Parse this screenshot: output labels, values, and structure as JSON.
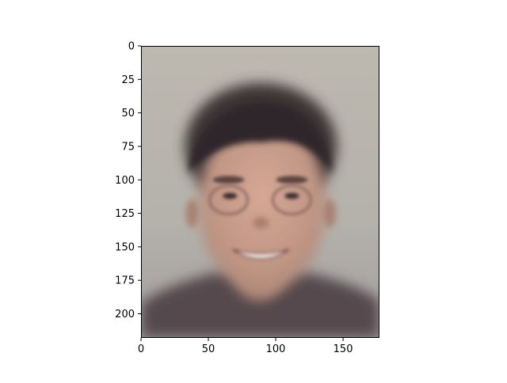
{
  "chart_data": {
    "type": "image",
    "title": "",
    "xlabel": "",
    "ylabel": "",
    "image_description": "blurry average face (eigenface-style mean image)",
    "xlim": [
      0,
      177
    ],
    "ylim": [
      0,
      218
    ],
    "y_inverted": true,
    "xticks": [
      0,
      50,
      100,
      150
    ],
    "yticks": [
      0,
      25,
      50,
      75,
      100,
      125,
      150,
      175,
      200
    ],
    "grid": false,
    "legend": "none",
    "colors": {
      "background": "#b8b5ad",
      "hair": "#3d3436",
      "skin": "#c79c8b",
      "shirt": "#55494e"
    }
  }
}
